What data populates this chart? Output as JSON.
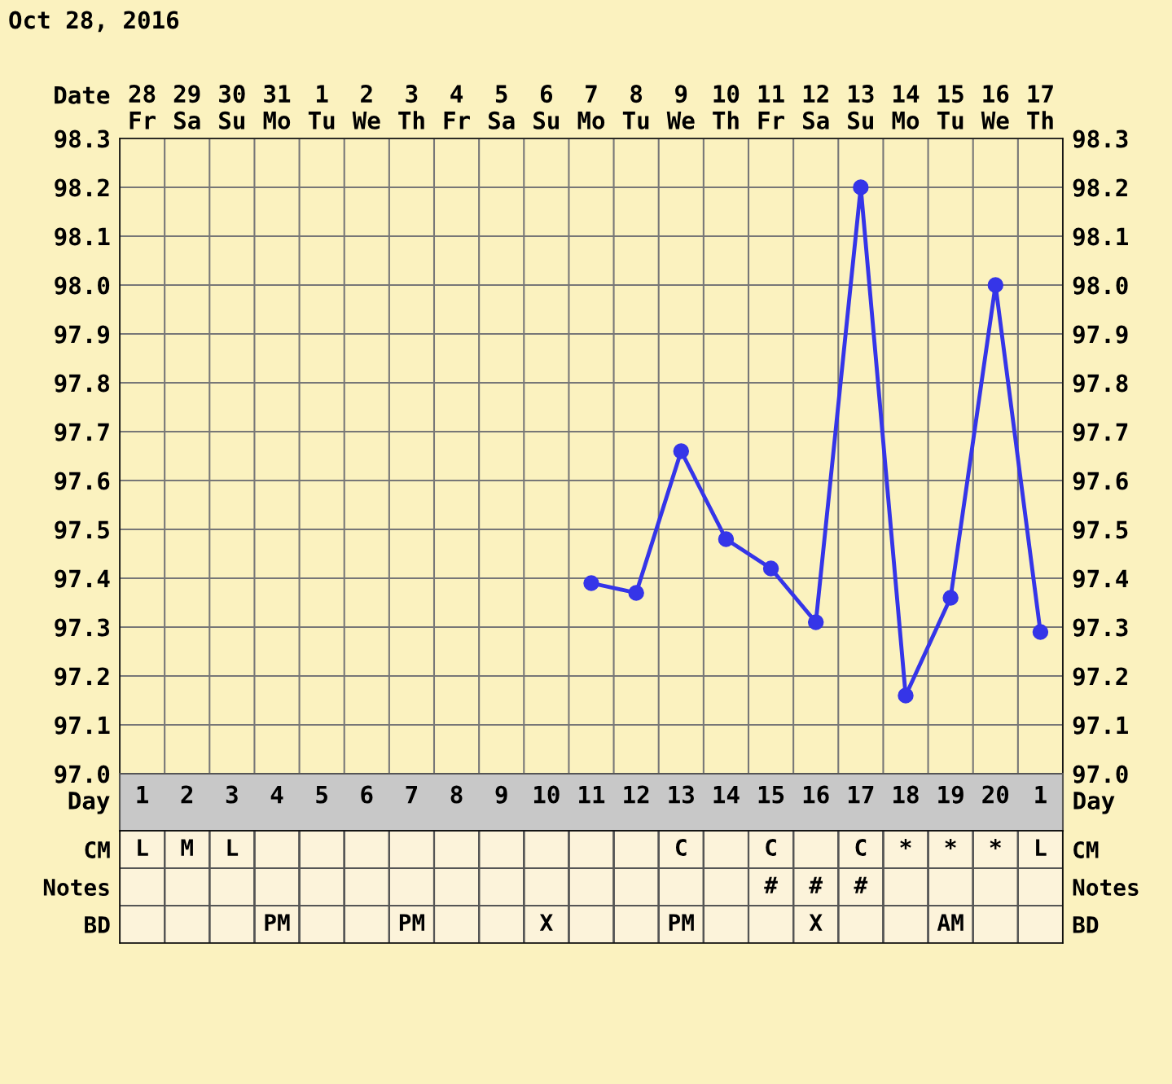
{
  "chart_data": [
    {
      "type": "line",
      "title": "Oct 28, 2016",
      "xlabel": "Date",
      "categories": [
        "28\nFr",
        "29\nSa",
        "30\nSu",
        "31\nMo",
        "1\nTu",
        "2\nWe",
        "3\nTh",
        "4\nFr",
        "5\nSa",
        "6\nSu",
        "7\nMo",
        "8\nTu",
        "9\nWe",
        "10\nTh",
        "11\nFr",
        "12\nSa",
        "13\nSu",
        "14\nMo",
        "15\nTu",
        "16\nWe",
        "17\nTh"
      ],
      "series": [
        {
          "color": "#3535e8",
          "values": [
            null,
            null,
            null,
            null,
            null,
            null,
            null,
            null,
            null,
            null,
            97.39,
            97.37,
            97.66,
            97.48,
            97.42,
            97.31,
            98.2,
            97.16,
            97.36,
            98.0,
            97.29
          ]
        }
      ],
      "ylim": [
        97.0,
        98.3
      ],
      "yticks": [
        {
          "value": 97.0,
          "label": "97.0"
        },
        97.1,
        97.2,
        97.3,
        97.4,
        97.5,
        97.6,
        97.7,
        97.8,
        97.9,
        {
          "value": 98.0,
          "label": "98.0"
        },
        98.1,
        98.2,
        98.3
      ],
      "y2lim": [
        97.0,
        98.3
      ],
      "y2ticks": [
        {
          "value": 97.0,
          "label": "97.0"
        },
        97.1,
        97.2,
        97.3,
        97.4,
        97.5,
        97.6,
        97.7,
        97.8,
        97.9,
        {
          "value": 98.0,
          "label": "98.0"
        },
        98.1,
        98.2,
        98.3
      ],
      "grid": true,
      "marker": "circle",
      "line_style": "solid"
    },
    {
      "type": "heatmap",
      "xlabel": "Day",
      "categories": [
        "1",
        "2",
        "3",
        "4",
        "5",
        "6",
        "7",
        "8",
        "9",
        "10",
        "11",
        "12",
        "13",
        "14",
        "15",
        "16",
        "17",
        "18",
        "19",
        "20",
        "1"
      ],
      "y_categories": [
        "CM",
        "Notes",
        "BD"
      ],
      "y2_categories": [
        "CM",
        "Notes",
        "BD"
      ],
      "cells": [
        [
          null,
          null,
          null,
          null,
          null,
          null,
          null,
          null,
          null,
          null,
          null,
          null,
          null,
          null,
          null,
          null,
          null,
          null,
          null,
          null,
          null
        ],
        [
          null,
          null,
          null,
          null,
          null,
          null,
          null,
          null,
          null,
          null,
          null,
          null,
          null,
          null,
          null,
          null,
          null,
          null,
          null,
          null,
          null
        ],
        [
          null,
          null,
          null,
          null,
          null,
          null,
          null,
          null,
          null,
          null,
          null,
          null,
          null,
          null,
          null,
          null,
          null,
          null,
          null,
          null,
          null
        ]
      ],
      "cell_labels": [
        [
          "L",
          "M",
          "L",
          null,
          null,
          null,
          null,
          null,
          null,
          null,
          null,
          null,
          "C",
          null,
          "C",
          null,
          "C",
          "*",
          "*",
          "*",
          "L"
        ],
        [
          null,
          null,
          null,
          null,
          null,
          null,
          null,
          null,
          null,
          null,
          null,
          null,
          null,
          null,
          "#",
          "#",
          "#",
          null,
          null,
          null,
          null
        ],
        [
          null,
          null,
          null,
          "PM",
          null,
          null,
          "PM",
          null,
          null,
          "X",
          null,
          null,
          "PM",
          null,
          null,
          "X",
          null,
          null,
          "AM",
          null,
          null
        ]
      ]
    }
  ]
}
